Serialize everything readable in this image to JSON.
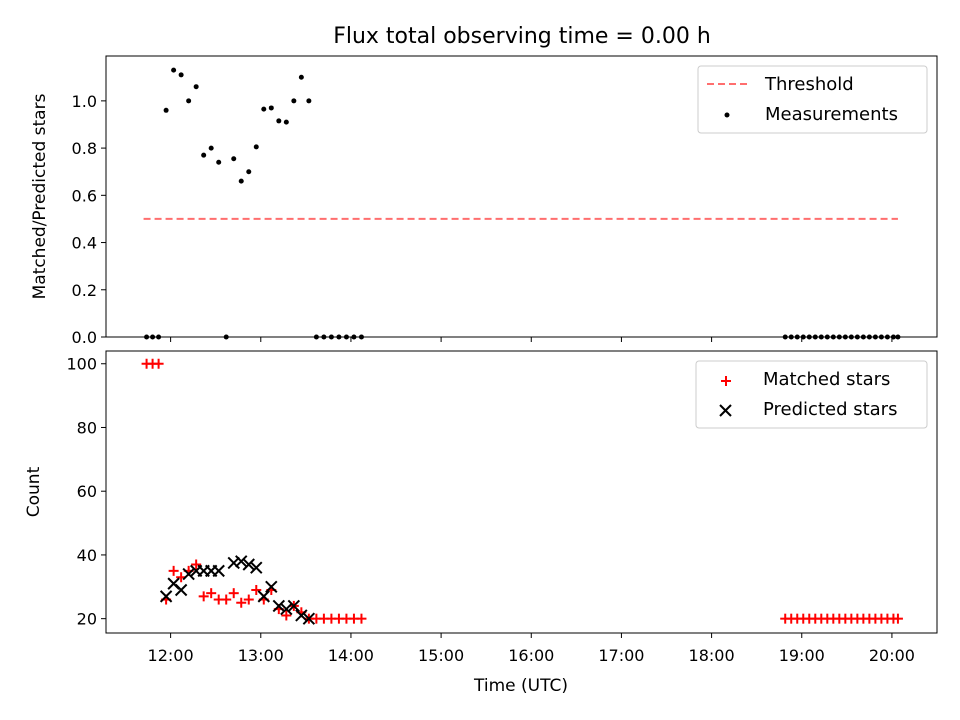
{
  "chart_data": [
    {
      "type": "scatter",
      "title": "Flux total observing time = 0.00 h",
      "ylabel": "Matched/Predicted stars",
      "xlabel": "",
      "ylim": [
        0,
        1.19
      ],
      "xlim": [
        "11:17",
        "20:30"
      ],
      "yticks": [
        0.0,
        0.2,
        0.4,
        0.6,
        0.8,
        1.0
      ],
      "ytick_labels": [
        "0.0",
        "0.2",
        "0.4",
        "0.6",
        "0.8",
        "1.0"
      ],
      "grid": false,
      "legend_position": "top-right",
      "legend": [
        "Threshold",
        "Measurements"
      ],
      "threshold": {
        "name": "Threshold",
        "color": "#ff6e6e",
        "value": 0.5,
        "x": [
          "11:42",
          "20:04"
        ]
      },
      "series": [
        {
          "name": "Measurements",
          "color": "#000000",
          "marker": "dot",
          "x": [
            "11:44",
            "11:48",
            "11:52",
            "11:57",
            "12:02",
            "12:07",
            "12:12",
            "12:17",
            "12:22",
            "12:27",
            "12:32",
            "12:37",
            "12:42",
            "12:47",
            "12:52",
            "12:57",
            "13:02",
            "13:07",
            "13:12",
            "13:17",
            "13:22",
            "13:27",
            "13:32",
            "13:37",
            "13:42",
            "13:47",
            "13:52",
            "13:57",
            "14:02",
            "14:07",
            "18:49",
            "18:53",
            "18:57",
            "19:01",
            "19:05",
            "19:09",
            "19:13",
            "19:17",
            "19:21",
            "19:25",
            "19:29",
            "19:33",
            "19:37",
            "19:41",
            "19:45",
            "19:49",
            "19:53",
            "19:57",
            "20:01",
            "20:04"
          ],
          "values": [
            0,
            0,
            0,
            0.96,
            1.13,
            1.11,
            1.0,
            1.06,
            0.77,
            0.8,
            0.74,
            0,
            0.755,
            0.66,
            0.7,
            0.805,
            0.965,
            0.97,
            0.915,
            0.91,
            1.0,
            1.1,
            1.0,
            0,
            0,
            0,
            0,
            0,
            0,
            0,
            0,
            0,
            0,
            0,
            0,
            0,
            0,
            0,
            0,
            0,
            0,
            0,
            0,
            0,
            0,
            0,
            0,
            0,
            0,
            0
          ]
        }
      ]
    },
    {
      "type": "scatter",
      "title": "",
      "ylabel": "Count",
      "xlabel": "Time (UTC)",
      "ylim": [
        15.5,
        104
      ],
      "xlim": [
        "11:17",
        "20:30"
      ],
      "yticks": [
        20,
        40,
        60,
        80,
        100
      ],
      "ytick_labels": [
        "20",
        "40",
        "60",
        "80",
        "100"
      ],
      "xticks": [
        "12:00",
        "13:00",
        "14:00",
        "15:00",
        "16:00",
        "17:00",
        "18:00",
        "19:00",
        "20:00"
      ],
      "xtick_labels": [
        "12:00",
        "13:00",
        "14:00",
        "15:00",
        "16:00",
        "17:00",
        "18:00",
        "19:00",
        "20:00"
      ],
      "grid": false,
      "legend_position": "top-right",
      "legend": [
        "Matched stars",
        "Predicted stars"
      ],
      "series": [
        {
          "name": "Matched stars",
          "color": "#ff0000",
          "marker": "plus",
          "x": [
            "11:44",
            "11:48",
            "11:52",
            "11:57",
            "12:02",
            "12:07",
            "12:12",
            "12:17",
            "12:22",
            "12:27",
            "12:32",
            "12:37",
            "12:42",
            "12:47",
            "12:52",
            "12:57",
            "13:02",
            "13:07",
            "13:12",
            "13:17",
            "13:22",
            "13:27",
            "13:32",
            "13:37",
            "13:42",
            "13:47",
            "13:52",
            "13:57",
            "14:02",
            "14:07",
            "18:49",
            "18:53",
            "18:57",
            "19:01",
            "19:05",
            "19:09",
            "19:13",
            "19:17",
            "19:21",
            "19:25",
            "19:29",
            "19:33",
            "19:37",
            "19:41",
            "19:45",
            "19:49",
            "19:53",
            "19:57",
            "20:01",
            "20:04"
          ],
          "values": [
            100,
            100,
            100,
            26,
            35,
            33,
            35,
            37,
            27,
            28,
            26,
            26,
            28,
            25,
            26,
            29,
            26,
            29,
            23,
            21,
            24,
            22,
            20,
            20,
            20,
            20,
            20,
            20,
            20,
            20,
            20,
            20,
            20,
            20,
            20,
            20,
            20,
            20,
            20,
            20,
            20,
            20,
            20,
            20,
            20,
            20,
            20,
            20,
            20,
            20
          ]
        },
        {
          "name": "Predicted stars",
          "color": "#000000",
          "marker": "x",
          "x": [
            "11:57",
            "12:02",
            "12:07",
            "12:12",
            "12:17",
            "12:22",
            "12:27",
            "12:32",
            "12:42",
            "12:47",
            "12:52",
            "12:57",
            "13:02",
            "13:07",
            "13:12",
            "13:17",
            "13:22",
            "13:27",
            "13:32"
          ],
          "values": [
            27,
            31,
            29,
            34,
            35,
            35,
            35,
            35,
            37.5,
            38,
            37,
            36,
            27,
            30,
            24,
            23,
            24,
            21,
            20
          ]
        }
      ]
    }
  ]
}
